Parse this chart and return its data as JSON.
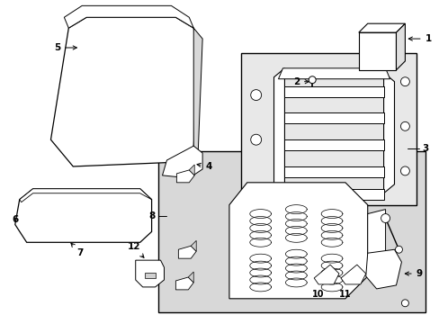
{
  "bg": "#ffffff",
  "lc": "#000000",
  "box_fill": "#e8e8e8",
  "box_fill2": "#d8d8d8",
  "white": "#ffffff"
}
